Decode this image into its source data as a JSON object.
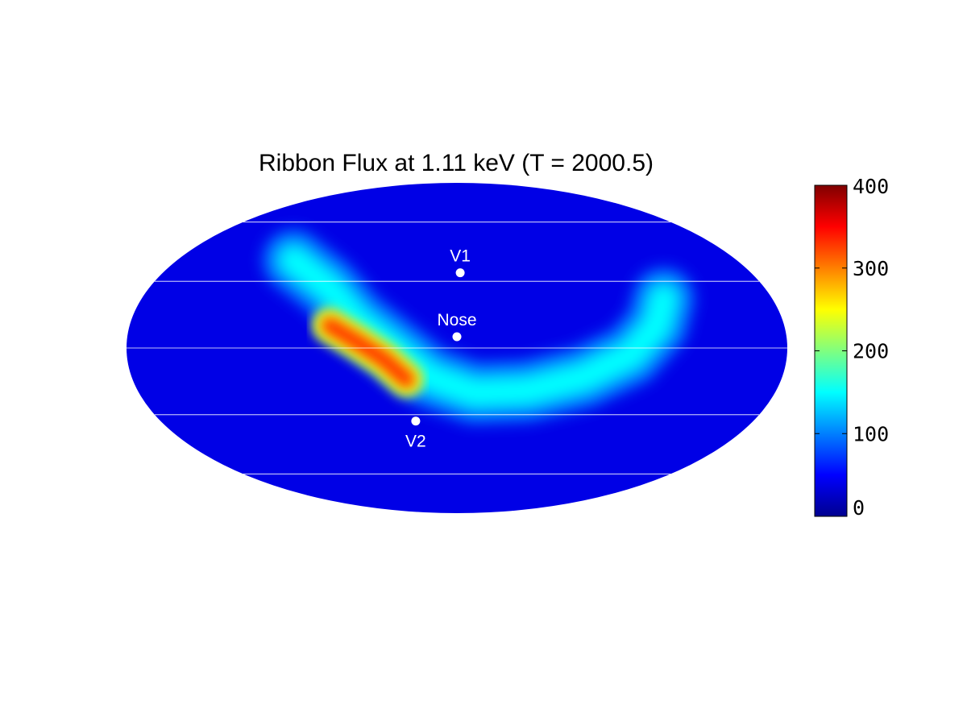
{
  "chart_data": {
    "type": "heatmap",
    "projection": "mollweide",
    "title": "Ribbon Flux at 1.11 keV (T = 2000.5)",
    "grid": true,
    "colormap": "jet",
    "colorbar": {
      "range": [
        0,
        400
      ],
      "ticks": [
        0,
        100,
        200,
        300,
        400
      ],
      "tick_labels": [
        "0",
        "100",
        "200",
        "300",
        "400"
      ],
      "placement": "right"
    },
    "field": {
      "background": 40,
      "ribbon": {
        "description_points_lon_lat": [
          [
            -105,
            40
          ],
          [
            -75,
            27
          ],
          [
            -55,
            12
          ],
          [
            -35,
            0
          ],
          [
            -15,
            -13
          ],
          [
            10,
            -20
          ],
          [
            40,
            -19
          ],
          [
            70,
            -13
          ],
          [
            95,
            -3
          ],
          [
            110,
            10
          ],
          [
            118,
            22
          ]
        ],
        "peak_value": 330,
        "peak_region_lon_lat": [
          [
            -70,
            10
          ],
          [
            -55,
            3
          ],
          [
            -40,
            -5
          ],
          [
            -28,
            -14
          ]
        ]
      }
    },
    "markers": [
      {
        "label": "V1",
        "lon": 2,
        "lat": 34,
        "label_position": "above"
      },
      {
        "label": "Nose",
        "lon": 0,
        "lat": 5,
        "label_position": "above"
      },
      {
        "label": "V2",
        "lon": -25,
        "lat": -33,
        "label_position": "below"
      }
    ]
  }
}
